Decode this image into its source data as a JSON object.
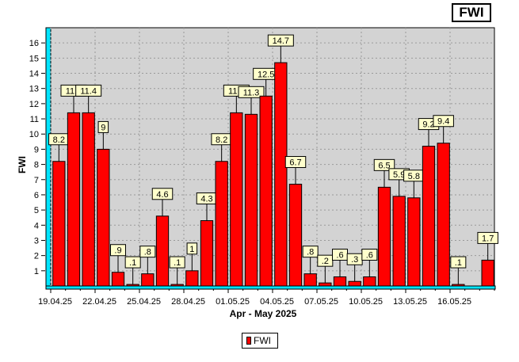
{
  "chart_data": {
    "type": "bar",
    "title": "FWI",
    "xlabel": "Apr - May 2025",
    "ylabel": "FWI",
    "ylim": [
      0,
      17
    ],
    "yticks": [
      1,
      2,
      3,
      4,
      5,
      6,
      7,
      8,
      9,
      10,
      11,
      12,
      13,
      14,
      15,
      16
    ],
    "xtick_labels": [
      "19.04.25",
      "22.04.25",
      "25.04.25",
      "28.04.25",
      "01.05.25",
      "04.05.25",
      "07.05.25",
      "10.05.25",
      "13.05.25",
      "16.05.25"
    ],
    "grid": true,
    "legend_position": "bottom-center",
    "colors": {
      "bar": "#ff0000",
      "plot_bg": "#d3d3d3",
      "axis_accent": "#00e5ff"
    },
    "categories": [
      "19.04.25",
      "20.04.25",
      "21.04.25",
      "22.04.25",
      "23.04.25",
      "24.04.25",
      "25.04.25",
      "26.04.25",
      "27.04.25",
      "28.04.25",
      "29.04.25",
      "30.04.25",
      "01.05.25",
      "02.05.25",
      "03.05.25",
      "04.05.25",
      "05.05.25",
      "06.05.25",
      "07.05.25",
      "08.05.25",
      "09.05.25",
      "10.05.25",
      "11.05.25",
      "12.05.25",
      "13.05.25",
      "14.05.25",
      "15.05.25",
      "16.05.25",
      "17.05.25",
      "18.05.25"
    ],
    "series": [
      {
        "name": "FWI",
        "values": [
          8.2,
          11.4,
          11.4,
          9,
          0.9,
          0.1,
          0.8,
          4.6,
          0.1,
          1,
          4.3,
          8.2,
          11.4,
          11.3,
          12.5,
          14.7,
          6.7,
          0.8,
          0.2,
          0.6,
          0.3,
          0.6,
          6.5,
          5.9,
          5.8,
          9.2,
          9.4,
          0.1,
          null,
          1.7
        ],
        "labels": [
          "8.2",
          "11.4",
          "11.4",
          "9",
          ".9",
          ".1",
          ".8",
          "4.6",
          ".1",
          "1",
          "4.3",
          "8.2",
          "11.4",
          "11.3",
          "12.5",
          "14.7",
          "6.7",
          ".8",
          ".2",
          ".6",
          ".3",
          ".6",
          "6.5",
          "5.9",
          "5.8",
          "9.2",
          "9.4",
          ".1",
          "",
          "1.7"
        ]
      }
    ]
  }
}
